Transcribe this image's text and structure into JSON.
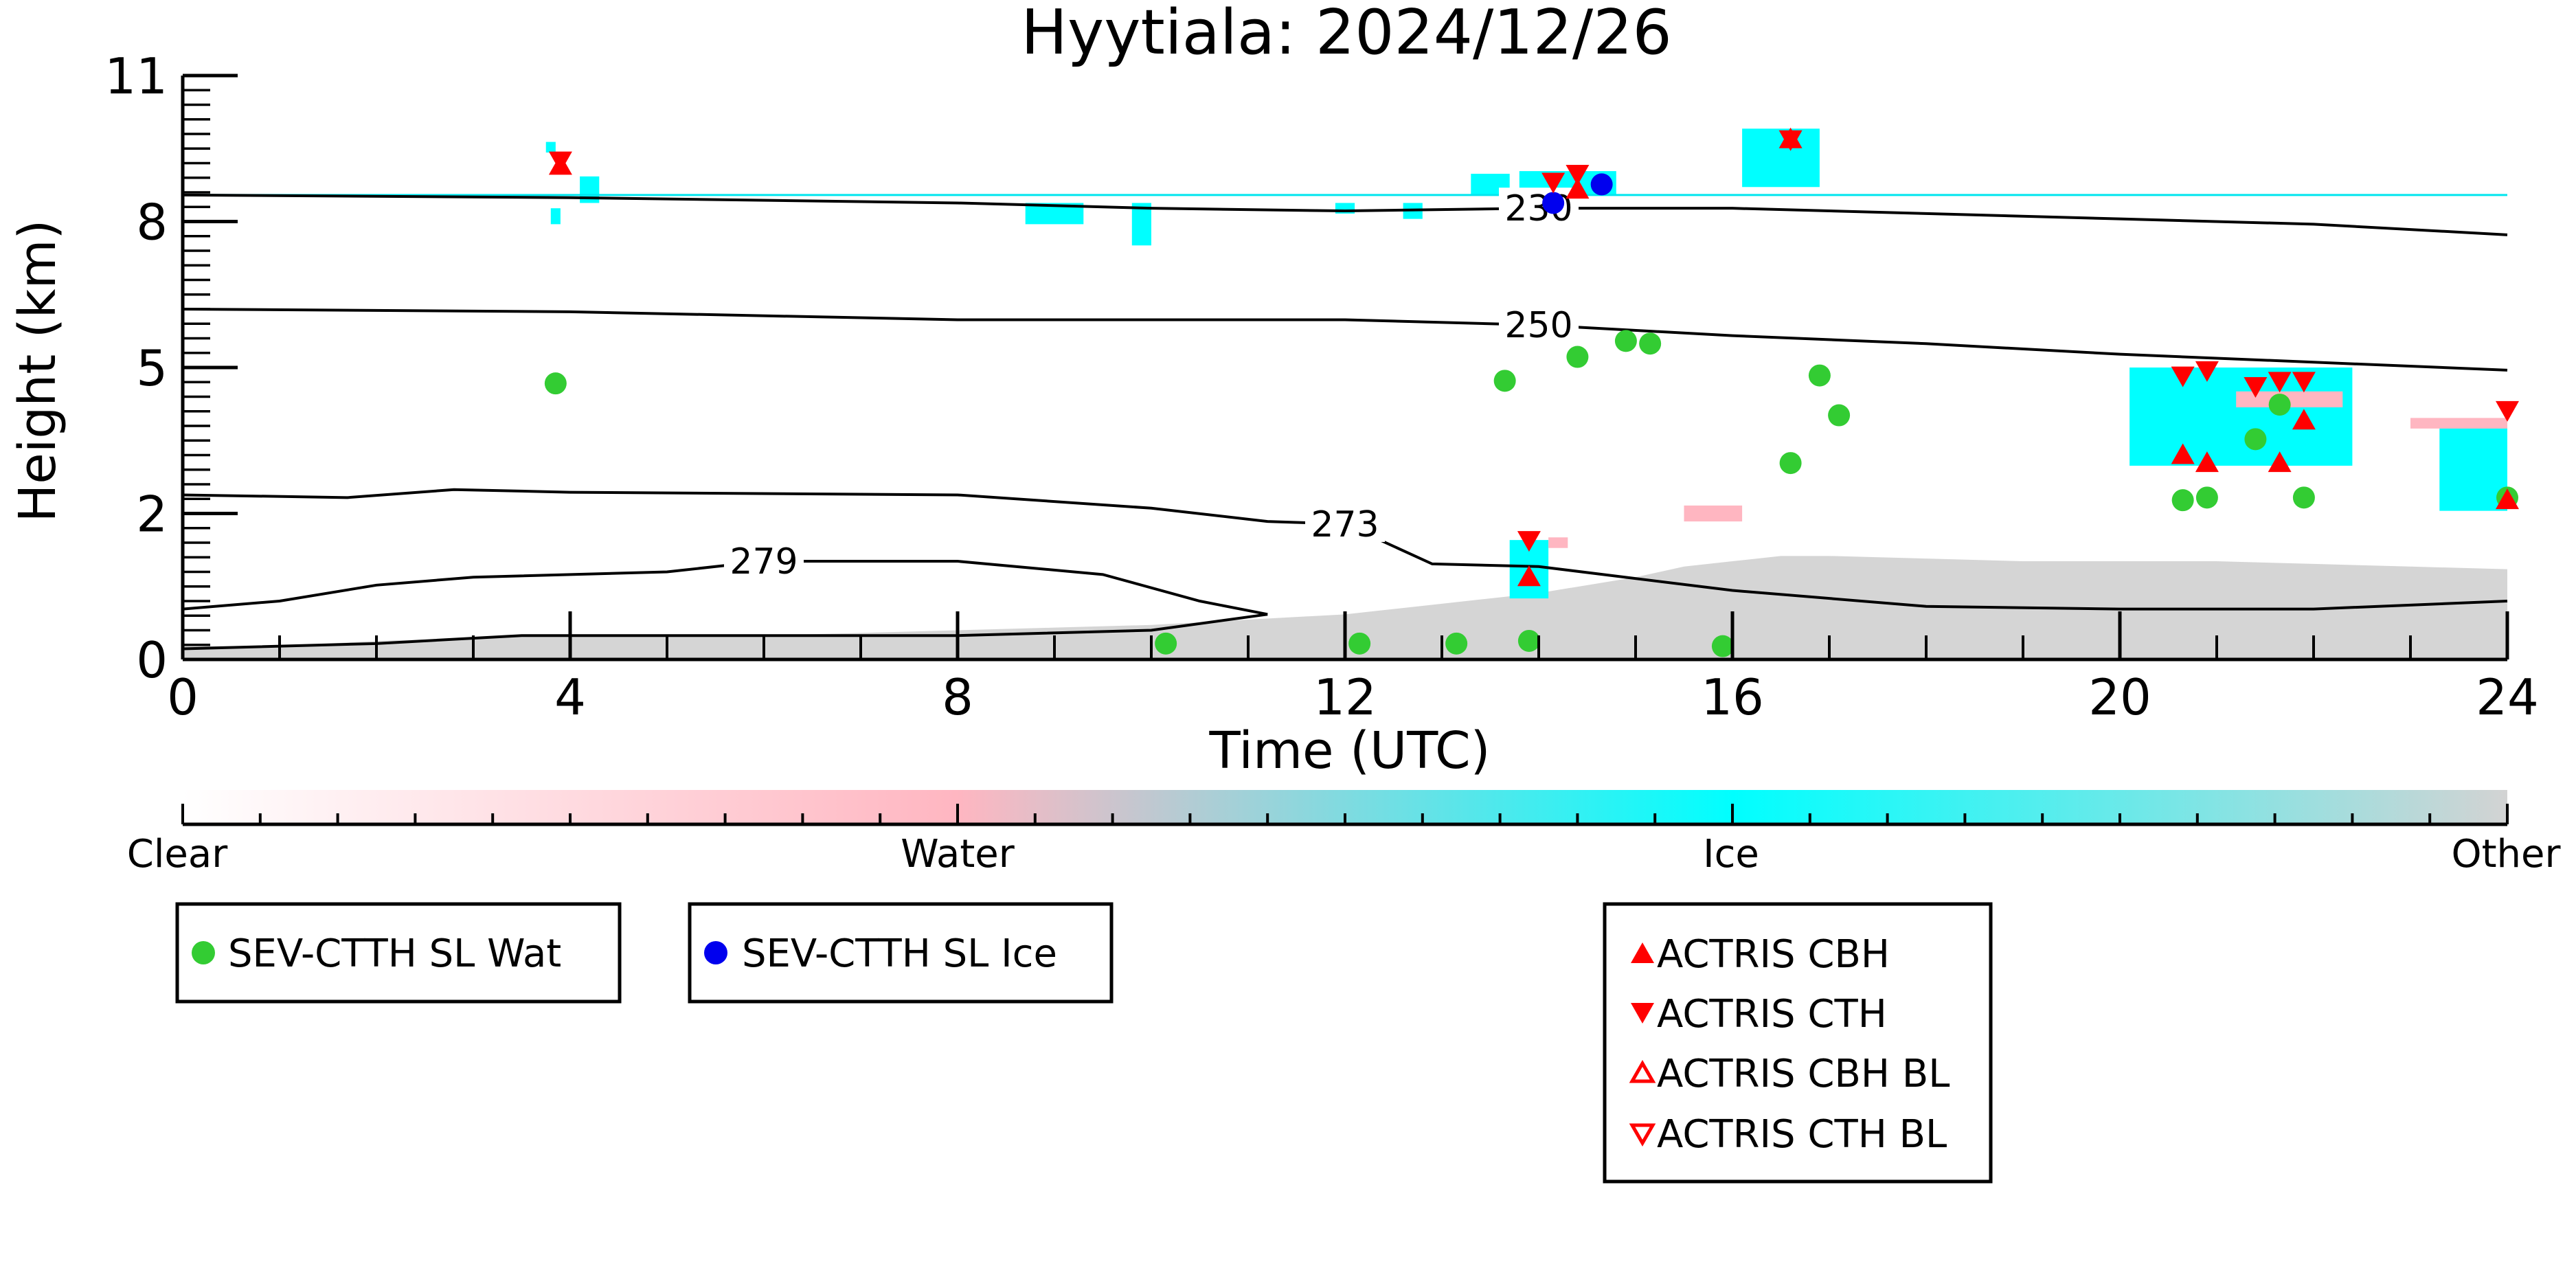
{
  "chart_data": {
    "type": "scatter",
    "title": "Hyytiala: 2024/12/26",
    "xlabel": "Time (UTC)",
    "ylabel": "Height (km)",
    "xlim": [
      0,
      24
    ],
    "ylim": [
      0,
      11
    ],
    "x_ticks": [
      "0",
      "4",
      "8",
      "12",
      "16",
      "20",
      "24"
    ],
    "y_ticks": [
      "0",
      "2",
      "5",
      "8",
      "11"
    ],
    "y_tick_values": [
      0,
      2.75,
      5.5,
      8.25,
      11
    ],
    "colorbar": {
      "labels": [
        "Clear",
        "Water",
        "Ice",
        "Other"
      ],
      "colors": [
        "#ffffff",
        "#ffb6c1",
        "#00ffff",
        "#d3d3d3"
      ]
    },
    "contours": [
      {
        "label": "230",
        "x": [
          0,
          4,
          8,
          10,
          12,
          14,
          16,
          18,
          20,
          22,
          24
        ],
        "y": [
          8.75,
          8.7,
          8.6,
          8.5,
          8.45,
          8.5,
          8.5,
          8.4,
          8.3,
          8.2,
          8.0
        ]
      },
      {
        "label": "250",
        "x": [
          0,
          4,
          8,
          10,
          12,
          14,
          16,
          18,
          20,
          22,
          24
        ],
        "y": [
          6.6,
          6.55,
          6.4,
          6.4,
          6.4,
          6.3,
          6.1,
          5.95,
          5.75,
          5.6,
          5.45
        ]
      },
      {
        "label": "273",
        "x": [
          0,
          1.7,
          2.8,
          4,
          8,
          10,
          11.2,
          12,
          12.9,
          14,
          16,
          18,
          20,
          22,
          24
        ],
        "y": [
          3.1,
          3.05,
          3.2,
          3.15,
          3.1,
          2.85,
          2.6,
          2.55,
          1.8,
          1.75,
          1.3,
          1.0,
          0.95,
          0.95,
          1.1
        ]
      },
      {
        "label": "279",
        "x": [
          0,
          1,
          2,
          3,
          5,
          6,
          8,
          9.5,
          10.5,
          11.2
        ],
        "y": [
          0.95,
          1.1,
          1.4,
          1.55,
          1.65,
          1.85,
          1.85,
          1.6,
          1.1,
          0.85
        ]
      },
      {
        "label": "",
        "x": [
          0,
          2,
          3.5,
          6,
          8,
          10,
          11.2
        ],
        "y": [
          0.2,
          0.3,
          0.45,
          0.45,
          0.45,
          0.55,
          0.85
        ]
      }
    ],
    "series": [
      {
        "name": "SEV-CTTH SL Wat",
        "color": "#33cc33",
        "marker": "circle",
        "x": [
          3.85,
          10.15,
          12.15,
          13.15,
          13.9,
          13.65,
          14.4,
          14.9,
          15.15,
          15.9,
          16.6,
          16.9,
          17.1,
          20.65,
          20.9,
          21.4,
          21.65,
          21.9,
          24.0
        ],
        "y": [
          5.2,
          0.3,
          0.3,
          0.3,
          0.35,
          5.25,
          5.7,
          6.0,
          5.95,
          0.25,
          3.7,
          5.35,
          4.6,
          3.0,
          3.05,
          4.15,
          4.8,
          3.05,
          3.05
        ]
      },
      {
        "name": "SEV-CTTH SL Ice",
        "color": "#0000ee",
        "marker": "circle",
        "x": [
          14.15,
          14.65
        ],
        "y": [
          8.6,
          8.95
        ]
      },
      {
        "name": "ACTRIS CBH",
        "color": "#ff0000",
        "marker": "triangle-up",
        "x": [
          3.9,
          13.9,
          14.4,
          16.6,
          20.65,
          20.9,
          21.65,
          21.9,
          24.0
        ],
        "y": [
          9.3,
          1.55,
          8.85,
          9.8,
          3.85,
          3.7,
          3.7,
          4.5,
          3.0
        ]
      },
      {
        "name": "ACTRIS CTH",
        "color": "#ff0000",
        "marker": "triangle-down",
        "x": [
          3.9,
          13.9,
          14.15,
          14.4,
          16.6,
          20.65,
          20.9,
          21.4,
          21.65,
          21.9,
          24.0
        ],
        "y": [
          9.4,
          2.25,
          9.0,
          9.15,
          9.8,
          5.35,
          5.45,
          5.15,
          5.25,
          5.25,
          4.7
        ]
      },
      {
        "name": "ACTRIS CBH BL",
        "color": "#ff0000",
        "marker": "triangle-up-open",
        "x": [],
        "y": []
      },
      {
        "name": "ACTRIS CTH BL",
        "color": "#ff0000",
        "marker": "triangle-down-open",
        "x": [],
        "y": []
      }
    ],
    "cloud_regions": [
      {
        "type": "Ice",
        "x0": 3.75,
        "x1": 3.85,
        "y0": 9.55,
        "y1": 9.75
      },
      {
        "type": "Ice",
        "x0": 4.1,
        "x1": 4.3,
        "y0": 8.6,
        "y1": 9.1
      },
      {
        "type": "Ice",
        "x0": 3.8,
        "x1": 3.9,
        "y0": 8.2,
        "y1": 8.5
      },
      {
        "type": "Ice",
        "x0": 8.7,
        "x1": 9.3,
        "y0": 8.2,
        "y1": 8.6
      },
      {
        "type": "Ice",
        "x0": 9.8,
        "x1": 10.0,
        "y0": 7.8,
        "y1": 8.6
      },
      {
        "type": "Ice",
        "x0": 11.9,
        "x1": 12.1,
        "y0": 8.4,
        "y1": 8.6
      },
      {
        "type": "Ice",
        "x0": 12.6,
        "x1": 12.8,
        "y0": 8.3,
        "y1": 8.6
      },
      {
        "type": "Ice",
        "x0": 13.3,
        "x1": 13.7,
        "y0": 8.75,
        "y1": 9.15
      },
      {
        "type": "Ice",
        "x0": 13.8,
        "x1": 14.8,
        "y0": 8.75,
        "y1": 9.2
      },
      {
        "type": "Ice",
        "x0": 16.1,
        "x1": 16.9,
        "y0": 8.9,
        "y1": 10.0
      },
      {
        "type": "Ice",
        "x0": 13.7,
        "x1": 14.1,
        "y0": 1.15,
        "y1": 2.25
      },
      {
        "type": "Water",
        "x0": 14.1,
        "x1": 14.3,
        "y0": 2.1,
        "y1": 2.3
      },
      {
        "type": "Water",
        "x0": 15.5,
        "x1": 16.1,
        "y0": 2.6,
        "y1": 2.9
      },
      {
        "type": "Ice",
        "x0": 20.1,
        "x1": 22.4,
        "y0": 3.65,
        "y1": 5.5
      },
      {
        "type": "Water",
        "x0": 21.2,
        "x1": 22.3,
        "y0": 4.75,
        "y1": 5.05
      },
      {
        "type": "Ice",
        "x0": 23.3,
        "x1": 24.0,
        "y0": 2.8,
        "y1": 4.4
      },
      {
        "type": "Water",
        "x0": 23.0,
        "x1": 24.0,
        "y0": 4.35,
        "y1": 4.55
      }
    ],
    "other_profile": {
      "type": "Other",
      "x": [
        0,
        1,
        2,
        3,
        4,
        5,
        6,
        7,
        8,
        9,
        10,
        11,
        11.5,
        12,
        12.5,
        13,
        13.5,
        14,
        14.5,
        15,
        15.5,
        16,
        16.5,
        17,
        18,
        19,
        20,
        21,
        22,
        23,
        24
      ],
      "y": [
        0.25,
        0.25,
        0.35,
        0.4,
        0.45,
        0.45,
        0.45,
        0.5,
        0.55,
        0.6,
        0.65,
        0.75,
        0.8,
        0.85,
        0.95,
        1.05,
        1.15,
        1.25,
        1.4,
        1.55,
        1.75,
        1.85,
        1.95,
        1.95,
        1.9,
        1.85,
        1.85,
        1.85,
        1.8,
        1.75,
        1.7
      ]
    }
  },
  "legends": [
    {
      "entries": [
        {
          "label": "SEV-CTTH SL Wat",
          "marker": "circle",
          "color": "#33cc33"
        }
      ]
    },
    {
      "entries": [
        {
          "label": "SEV-CTTH SL Ice",
          "marker": "circle",
          "color": "#0000ee"
        }
      ]
    },
    {
      "entries": [
        {
          "label": "ACTRIS CBH",
          "marker": "triangle-up",
          "color": "#ff0000"
        },
        {
          "label": "ACTRIS CTH",
          "marker": "triangle-down",
          "color": "#ff0000"
        },
        {
          "label": "ACTRIS CBH BL",
          "marker": "triangle-up-open",
          "color": "#ff0000"
        },
        {
          "label": "ACTRIS CTH BL",
          "marker": "triangle-down-open",
          "color": "#ff0000"
        }
      ]
    }
  ]
}
